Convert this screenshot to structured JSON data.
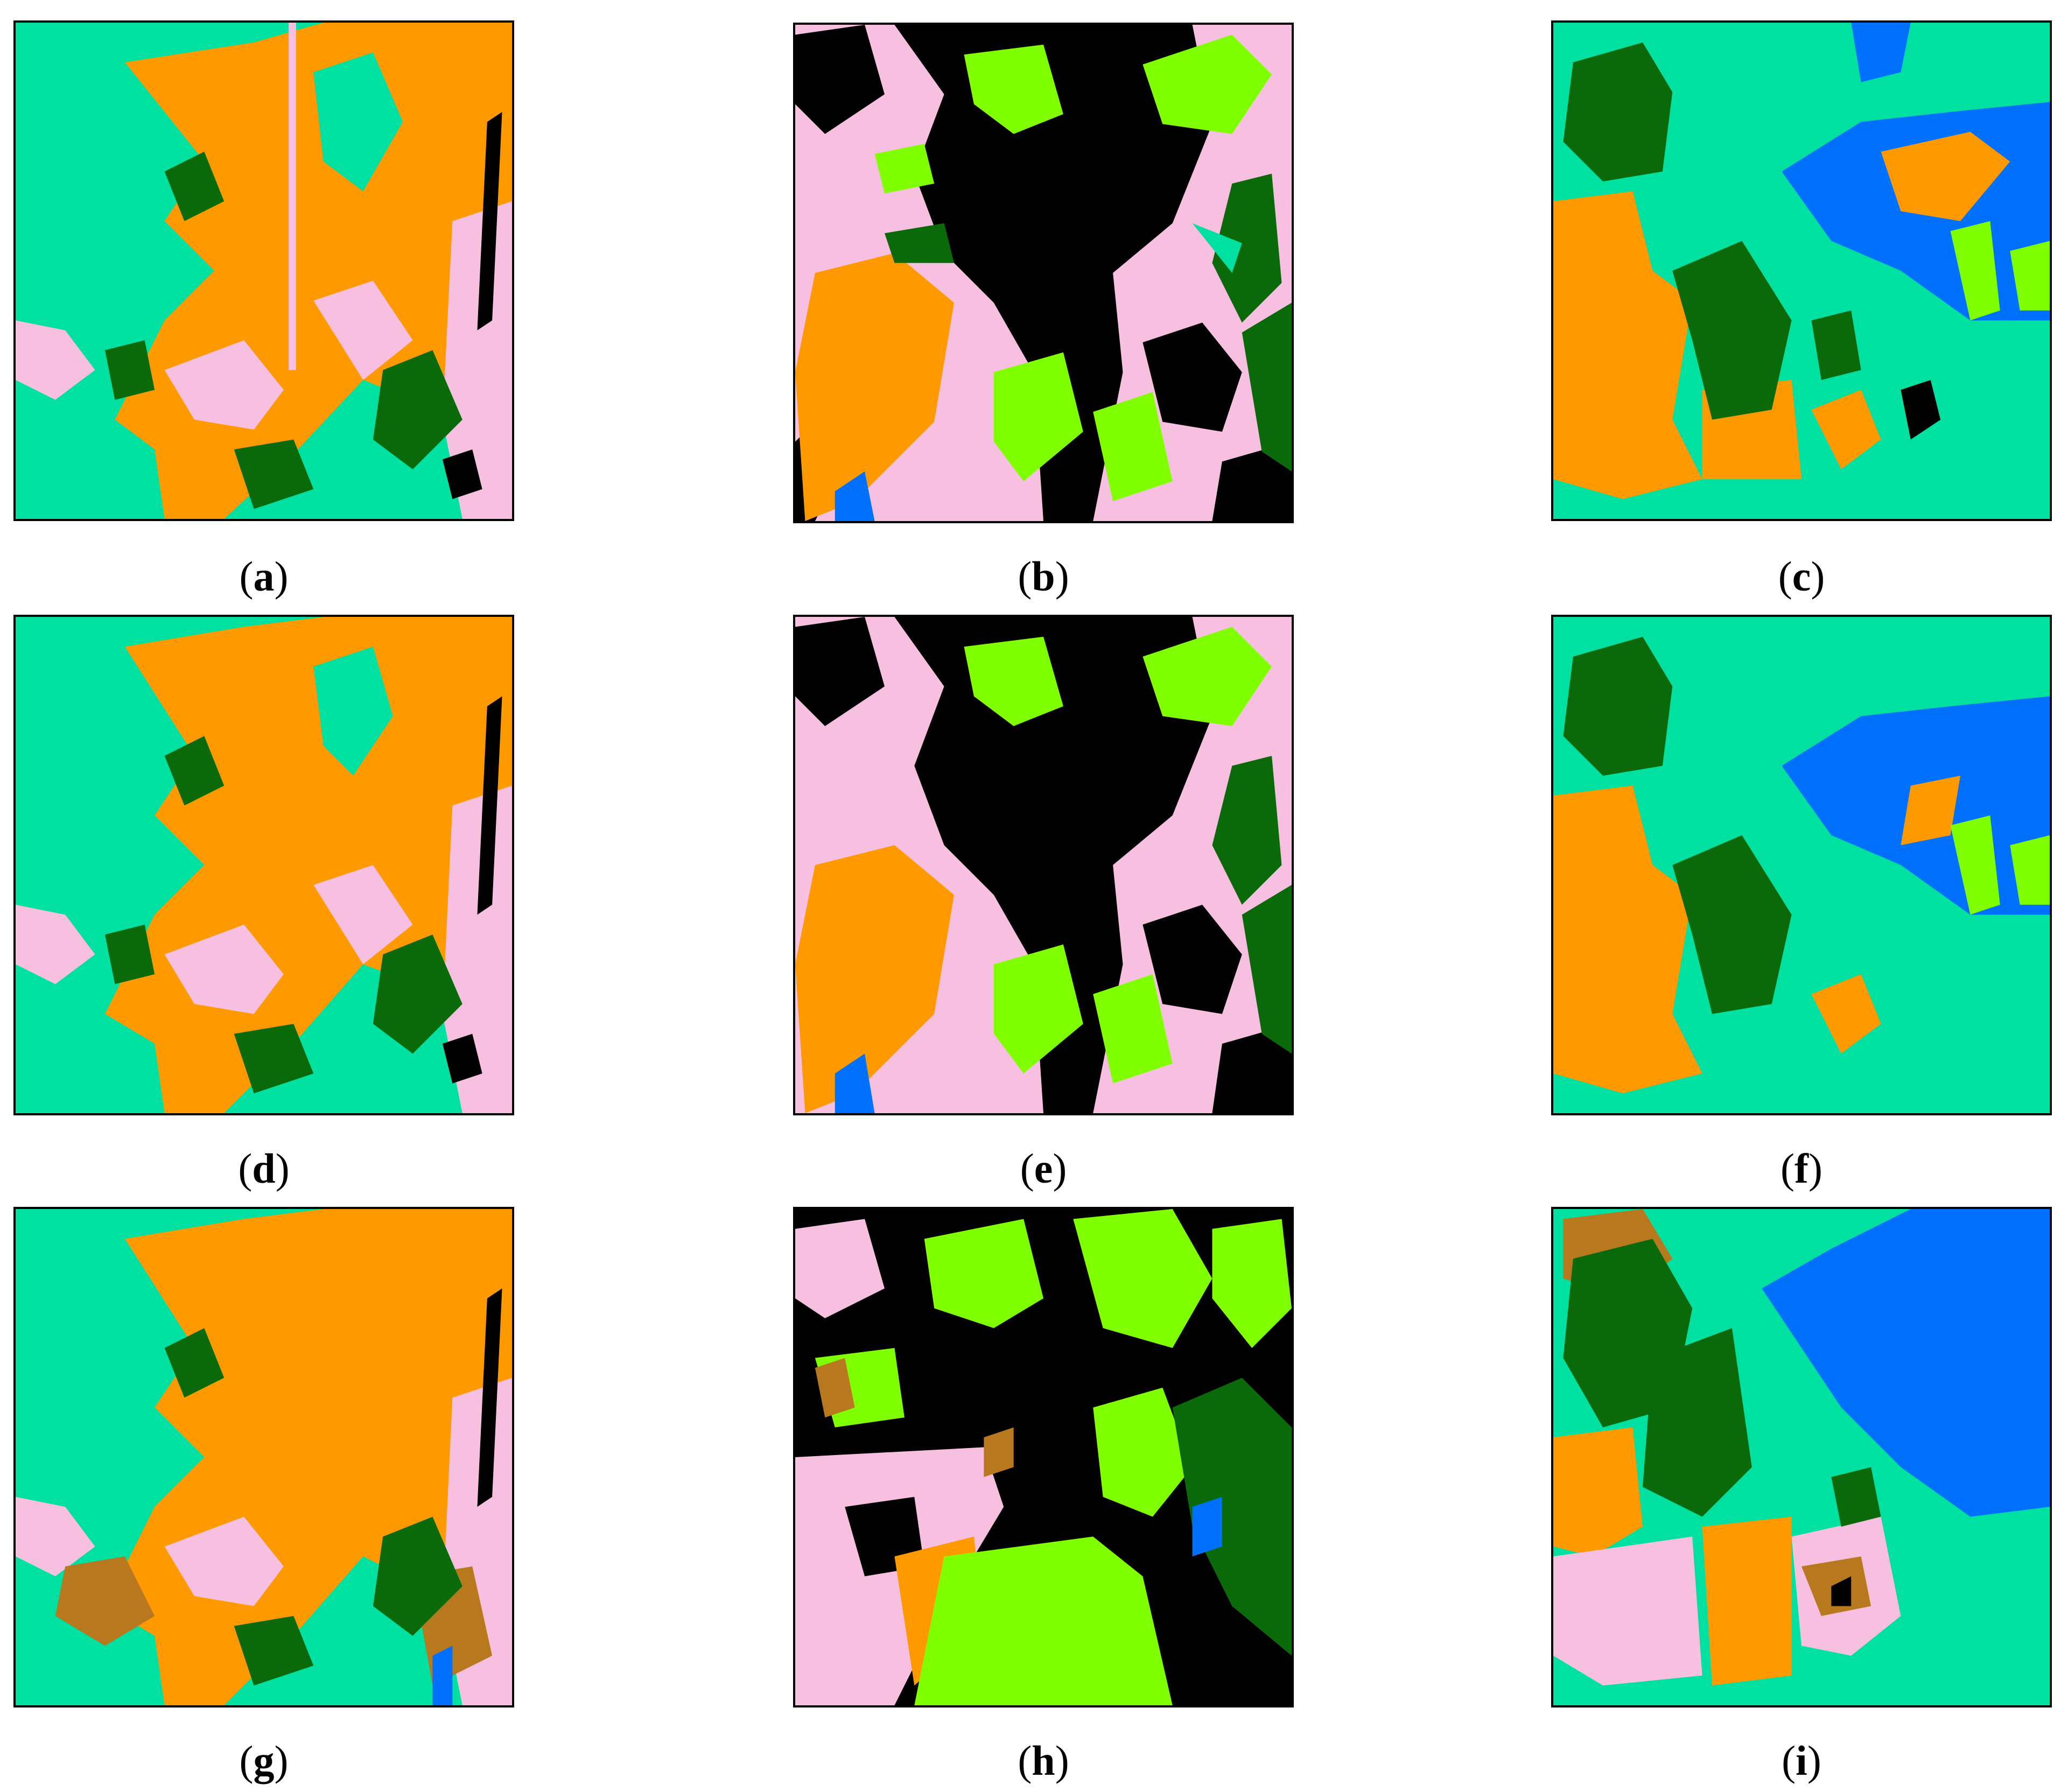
{
  "palette": {
    "teal": "#00E0A0",
    "orange": "#FF9900",
    "pink": "#F8C0E0",
    "dark_green": "#0A6A0A",
    "black": "#000000",
    "light_green": "#80FF00",
    "blue": "#0070FF",
    "brown": "#B8781E"
  },
  "panels": [
    {
      "id": "a",
      "label": "a"
    },
    {
      "id": "b",
      "label": "b"
    },
    {
      "id": "c",
      "label": "c"
    },
    {
      "id": "d",
      "label": "d"
    },
    {
      "id": "e",
      "label": "e"
    },
    {
      "id": "f",
      "label": "f"
    },
    {
      "id": "g",
      "label": "g"
    },
    {
      "id": "h",
      "label": "h"
    },
    {
      "id": "i",
      "label": "i"
    }
  ]
}
